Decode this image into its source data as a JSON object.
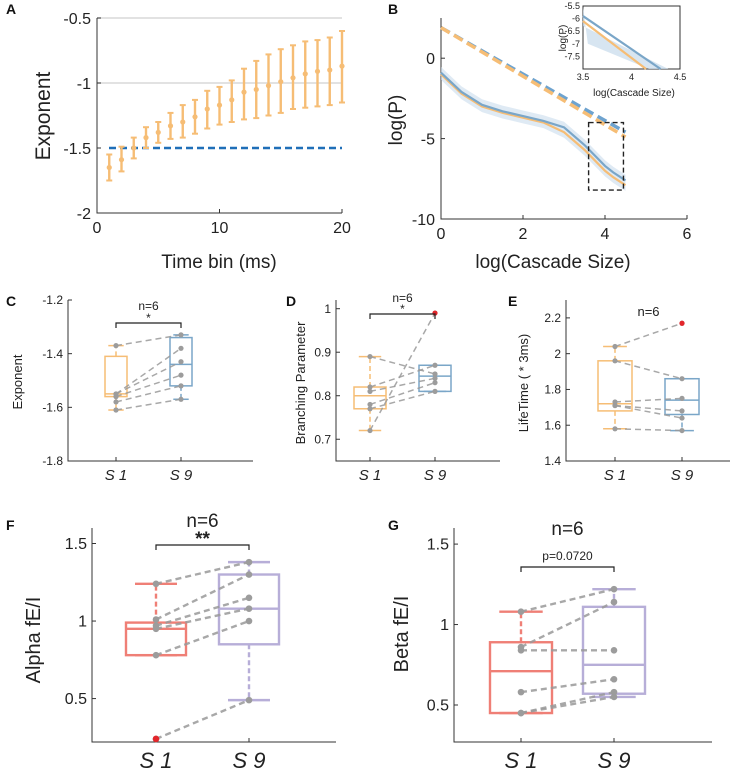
{
  "colors": {
    "orange": "#f6bd75",
    "blue_dash": "#1f6fb8",
    "dash_light_blue": "#6ea3cf",
    "blue_box": "#7aa6c8",
    "red_box": "#ef7f76",
    "purple_box": "#b7aed8",
    "gray_line": "#9a9a9a",
    "outlier": "#e3262b"
  },
  "chart_data": [
    {
      "id": "A",
      "type": "line",
      "letter": "A",
      "xlabel": "Time bin (ms)",
      "ylabel": "Exponent",
      "xlim": [
        0,
        20
      ],
      "ylim": [
        -2,
        -0.5
      ],
      "xticks": [
        "0",
        "10",
        "20"
      ],
      "yticks": [
        "-2",
        "-1.5",
        "-1",
        "-0.5"
      ],
      "reference_lines": [
        -0.5,
        -1
      ],
      "dashed_line": -1.5,
      "series": [
        {
          "name": "Exponent",
          "x": [
            1,
            2,
            3,
            4,
            5,
            6,
            7,
            8,
            9,
            10,
            11,
            12,
            13,
            14,
            15,
            16,
            17,
            18,
            19,
            20
          ],
          "mean": [
            -1.65,
            -1.59,
            -1.5,
            -1.42,
            -1.38,
            -1.33,
            -1.3,
            -1.26,
            -1.2,
            -1.17,
            -1.13,
            -1.07,
            -1.05,
            -1.02,
            -0.99,
            -0.96,
            -0.93,
            -0.91,
            -0.9,
            -0.87
          ],
          "low": [
            -1.75,
            -1.68,
            -1.58,
            -1.5,
            -1.46,
            -1.43,
            -1.42,
            -1.39,
            -1.35,
            -1.32,
            -1.3,
            -1.28,
            -1.27,
            -1.25,
            -1.23,
            -1.2,
            -1.19,
            -1.18,
            -1.17,
            -1.15
          ],
          "high": [
            -1.55,
            -1.49,
            -1.42,
            -1.34,
            -1.3,
            -1.23,
            -1.17,
            -1.13,
            -1.06,
            -1.03,
            -0.98,
            -0.89,
            -0.83,
            -0.78,
            -0.74,
            -0.71,
            -0.68,
            -0.67,
            -0.65,
            -0.6
          ]
        }
      ]
    },
    {
      "id": "B",
      "type": "line",
      "letter": "B",
      "xlabel": "log(Cascade Size)",
      "ylabel": "log(P)",
      "xlim": [
        0,
        6
      ],
      "ylim": [
        -10,
        2.5
      ],
      "xticks": [
        "0",
        "2",
        "4",
        "6"
      ],
      "yticks": [
        "0",
        "-5",
        "-10"
      ],
      "series": [
        {
          "name": "blue fit",
          "style": "dashed",
          "x": [
            0,
            4.5
          ],
          "y": [
            1.9,
            -4.6
          ]
        },
        {
          "name": "orange fit",
          "style": "dashed",
          "x": [
            0,
            4.5
          ],
          "y": [
            1.9,
            -4.9
          ]
        },
        {
          "name": "blue",
          "x": [
            0,
            0.5,
            1,
            1.5,
            2,
            2.5,
            3,
            3.5,
            4,
            4.2,
            4.5
          ],
          "y": [
            -0.9,
            -2.1,
            -2.9,
            -3.3,
            -3.6,
            -3.9,
            -4.3,
            -5.4,
            -6.7,
            -7.1,
            -7.6
          ]
        },
        {
          "name": "orange",
          "x": [
            0,
            0.5,
            1,
            1.5,
            2,
            2.5,
            3,
            3.5,
            4,
            4.2,
            4.5
          ],
          "y": [
            -1.0,
            -2.2,
            -3.0,
            -3.4,
            -3.7,
            -4.0,
            -4.6,
            -5.7,
            -7.0,
            -7.4,
            -7.9
          ]
        }
      ],
      "inset": {
        "xlabel": "log(Cascade Size)",
        "ylabel": "log(P)",
        "xlim": [
          3.5,
          4.5
        ],
        "ylim": [
          -8,
          -5.5
        ],
        "xticks": [
          "3.5",
          "4",
          "4.5"
        ],
        "yticks": [
          "-5.5",
          "-6",
          "-6.5",
          "-7",
          "-7.5"
        ],
        "series": [
          {
            "name": "blue",
            "x": [
              3.5,
              4.3
            ],
            "y": [
              -5.9,
              -8.0
            ]
          },
          {
            "name": "orange",
            "x": [
              3.5,
              4.15
            ],
            "y": [
              -6.1,
              -8.0
            ]
          }
        ]
      }
    },
    {
      "id": "C",
      "type": "box",
      "letter": "C",
      "ylabel": "Exponent",
      "ylim": [
        -1.8,
        -1.2
      ],
      "yticks": [
        "-1.2",
        "-1.4",
        "-1.6",
        "-1.8"
      ],
      "categories": [
        "S 1",
        "S 9"
      ],
      "n_label": "n=6",
      "significance": "*",
      "paired": [
        [
          -1.37,
          -1.33
        ],
        [
          -1.55,
          -1.38
        ],
        [
          -1.55,
          -1.43
        ],
        [
          -1.56,
          -1.48
        ],
        [
          -1.58,
          -1.52
        ],
        [
          -1.61,
          -1.57
        ]
      ],
      "boxes": [
        {
          "q1": -1.56,
          "median": -1.55,
          "q3": -1.41,
          "min": -1.61,
          "max": -1.37,
          "color": "orange"
        },
        {
          "q1": -1.52,
          "median": -1.44,
          "q3": -1.34,
          "min": -1.57,
          "max": -1.33,
          "color": "blue_box"
        }
      ],
      "outliers": []
    },
    {
      "id": "D",
      "type": "box",
      "letter": "D",
      "ylabel": "Branching Parameter",
      "ylim": [
        0.65,
        1.02
      ],
      "yticks": [
        "0.7",
        "0.8",
        "0.9",
        "1"
      ],
      "categories": [
        "S 1",
        "S 9"
      ],
      "n_label": "n=6",
      "significance": "*",
      "paired": [
        [
          0.89,
          0.85
        ],
        [
          0.82,
          0.87
        ],
        [
          0.81,
          0.84
        ],
        [
          0.78,
          0.83
        ],
        [
          0.77,
          0.81
        ],
        [
          0.72,
          0.99
        ]
      ],
      "boxes": [
        {
          "q1": 0.77,
          "median": 0.8,
          "q3": 0.82,
          "min": 0.72,
          "max": 0.89,
          "color": "orange"
        },
        {
          "q1": 0.81,
          "median": 0.845,
          "q3": 0.87,
          "min": 0.81,
          "max": 0.87,
          "color": "blue_box"
        }
      ],
      "outliers": [
        {
          "group": 1,
          "value": 0.99
        }
      ]
    },
    {
      "id": "E",
      "type": "box",
      "letter": "E",
      "ylabel": "LifeTime ( * 3ms)",
      "ylim": [
        1.4,
        2.3
      ],
      "yticks": [
        "1.4",
        "1.6",
        "1.8",
        "2",
        "2.2"
      ],
      "categories": [
        "S 1",
        "S 9"
      ],
      "n_label": "n=6",
      "significance": "",
      "paired": [
        [
          2.04,
          2.17
        ],
        [
          1.96,
          1.86
        ],
        [
          1.73,
          1.75
        ],
        [
          1.71,
          1.68
        ],
        [
          1.71,
          1.64
        ],
        [
          1.58,
          1.57
        ]
      ],
      "boxes": [
        {
          "q1": 1.68,
          "median": 1.72,
          "q3": 1.96,
          "min": 1.58,
          "max": 2.04,
          "color": "orange"
        },
        {
          "q1": 1.66,
          "median": 1.74,
          "q3": 1.86,
          "min": 1.57,
          "max": 1.86,
          "color": "blue_box"
        }
      ],
      "outliers": [
        {
          "group": 1,
          "value": 2.17
        }
      ]
    },
    {
      "id": "F",
      "type": "box",
      "letter": "F",
      "ylabel": "Alpha fE/I",
      "ylim": [
        0.22,
        1.6
      ],
      "yticks": [
        "0.5",
        "1",
        "1.5"
      ],
      "categories": [
        "S 1",
        "S 9"
      ],
      "n_label": "n=6",
      "significance": "**",
      "paired": [
        [
          1.24,
          1.38
        ],
        [
          1.01,
          1.3
        ],
        [
          0.97,
          1.15
        ],
        [
          0.95,
          1.08
        ],
        [
          0.78,
          1.0
        ],
        [
          0.24,
          0.49
        ]
      ],
      "boxes": [
        {
          "q1": 0.78,
          "median": 0.95,
          "q3": 0.99,
          "min": 0.78,
          "max": 1.24,
          "color": "red_box"
        },
        {
          "q1": 0.85,
          "median": 1.08,
          "q3": 1.3,
          "min": 0.49,
          "max": 1.38,
          "color": "purple_box"
        }
      ],
      "outliers": [
        {
          "group": 0,
          "value": 0.24
        }
      ]
    },
    {
      "id": "G",
      "type": "box",
      "letter": "G",
      "ylabel": "Beta fE/I",
      "ylim": [
        0.27,
        1.6
      ],
      "yticks": [
        "0.5",
        "1",
        "1.5"
      ],
      "categories": [
        "S 1",
        "S 9"
      ],
      "n_label": "n=6",
      "significance": "p=0.0720",
      "paired": [
        [
          1.08,
          1.22
        ],
        [
          0.86,
          1.14
        ],
        [
          0.84,
          0.84
        ],
        [
          0.58,
          0.66
        ],
        [
          0.45,
          0.58
        ],
        [
          0.45,
          0.55
        ]
      ],
      "boxes": [
        {
          "q1": 0.45,
          "median": 0.71,
          "q3": 0.89,
          "min": 0.45,
          "max": 1.08,
          "color": "red_box"
        },
        {
          "q1": 0.57,
          "median": 0.75,
          "q3": 1.11,
          "min": 0.55,
          "max": 1.22,
          "color": "purple_box"
        }
      ],
      "outliers": []
    }
  ]
}
